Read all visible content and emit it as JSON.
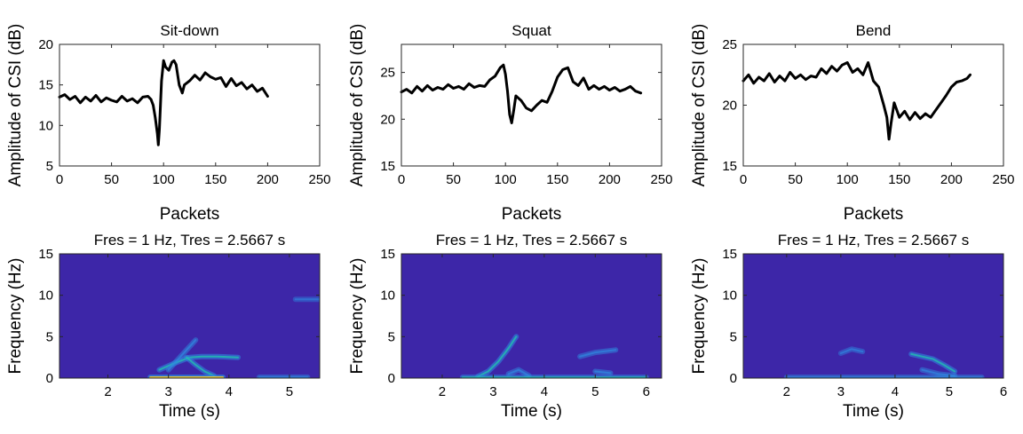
{
  "colors": {
    "line": "#000000",
    "spectrogram_background": "#3d26a8",
    "spectrogram_low": "#3d26a8",
    "spectrogram_mid": "#2f8ae0",
    "spectrogram_high": "#20c4ad",
    "spectrogram_peak": "#f9d12b"
  },
  "chart_data": [
    {
      "type": "line",
      "title": "Sit-down",
      "xlabel": "Packets",
      "ylabel": "Amplitude of CSI (dB)",
      "xlim": [
        0,
        250
      ],
      "ylim": [
        5,
        20
      ],
      "xticks": [
        0,
        50,
        100,
        150,
        200,
        250
      ],
      "yticks": [
        5,
        10,
        15,
        20
      ],
      "grid": false,
      "series": [
        {
          "x": [
            0,
            5,
            10,
            15,
            20,
            25,
            30,
            35,
            40,
            45,
            50,
            55,
            60,
            65,
            70,
            75,
            80,
            85,
            88,
            90,
            92,
            94,
            95,
            96,
            97,
            98,
            100,
            102,
            105,
            108,
            110,
            112,
            115,
            118,
            120,
            125,
            130,
            135,
            140,
            145,
            150,
            155,
            160,
            165,
            170,
            175,
            180,
            185,
            190,
            195,
            200
          ],
          "y": [
            13.5,
            13.8,
            13.2,
            13.6,
            12.8,
            13.5,
            13.0,
            13.7,
            12.9,
            13.4,
            13.1,
            12.9,
            13.6,
            13.0,
            13.3,
            12.8,
            13.5,
            13.6,
            13.2,
            12.5,
            11.0,
            9.0,
            7.6,
            9.5,
            12.5,
            15.5,
            18.0,
            17.2,
            16.8,
            17.8,
            18.0,
            17.5,
            15.0,
            14.0,
            15.0,
            15.5,
            16.2,
            15.6,
            16.5,
            16.0,
            15.7,
            15.9,
            14.8,
            15.8,
            14.9,
            15.3,
            14.5,
            15.0,
            14.2,
            14.6,
            13.6
          ]
        }
      ]
    },
    {
      "type": "line",
      "title": "Squat",
      "xlabel": "Packets",
      "ylabel": "Amplitude of CSI (dB)",
      "xlim": [
        0,
        250
      ],
      "ylim": [
        15,
        28
      ],
      "xticks": [
        0,
        50,
        100,
        150,
        200,
        250
      ],
      "yticks": [
        15,
        20,
        25
      ],
      "grid": false,
      "series": [
        {
          "x": [
            0,
            5,
            10,
            15,
            20,
            25,
            30,
            35,
            40,
            45,
            50,
            55,
            60,
            65,
            70,
            75,
            80,
            85,
            90,
            95,
            98,
            100,
            102,
            104,
            106,
            108,
            110,
            115,
            120,
            125,
            130,
            135,
            140,
            145,
            150,
            155,
            160,
            165,
            170,
            175,
            180,
            185,
            190,
            195,
            200,
            205,
            210,
            215,
            220,
            225,
            230
          ],
          "y": [
            22.9,
            23.2,
            22.8,
            23.5,
            23.0,
            23.6,
            23.1,
            23.4,
            23.2,
            23.7,
            23.3,
            23.5,
            23.2,
            23.8,
            23.4,
            23.6,
            23.5,
            24.2,
            24.6,
            25.5,
            25.8,
            24.8,
            23.0,
            20.5,
            19.6,
            21.0,
            22.5,
            22.0,
            21.2,
            20.9,
            21.5,
            22.0,
            21.8,
            23.0,
            24.5,
            25.3,
            25.5,
            24.0,
            23.6,
            24.4,
            23.2,
            23.6,
            23.2,
            23.5,
            23.1,
            23.4,
            23.0,
            23.2,
            23.5,
            23.0,
            22.8
          ]
        }
      ]
    },
    {
      "type": "line",
      "title": "Bend",
      "xlabel": "Packets",
      "ylabel": "Amplitude of CSI (dB)",
      "xlim": [
        0,
        250
      ],
      "ylim": [
        15,
        25
      ],
      "xticks": [
        0,
        50,
        100,
        150,
        200,
        250
      ],
      "yticks": [
        15,
        20,
        25
      ],
      "grid": false,
      "series": [
        {
          "x": [
            0,
            5,
            10,
            15,
            20,
            25,
            30,
            35,
            40,
            45,
            50,
            55,
            60,
            65,
            70,
            75,
            80,
            85,
            90,
            95,
            100,
            105,
            110,
            115,
            120,
            125,
            130,
            135,
            138,
            140,
            142,
            145,
            150,
            155,
            160,
            165,
            170,
            175,
            180,
            185,
            190,
            195,
            200,
            205,
            210,
            215,
            218
          ],
          "y": [
            22.0,
            22.5,
            21.8,
            22.3,
            22.0,
            22.6,
            21.9,
            22.4,
            22.0,
            22.7,
            22.2,
            22.5,
            22.1,
            22.4,
            22.3,
            23.0,
            22.6,
            23.2,
            22.8,
            23.3,
            23.5,
            22.7,
            23.0,
            22.5,
            23.5,
            22.0,
            21.5,
            20.0,
            19.0,
            17.2,
            18.5,
            20.2,
            19.0,
            19.5,
            18.8,
            19.4,
            18.9,
            19.3,
            19.0,
            19.6,
            20.2,
            20.8,
            21.5,
            21.9,
            22.0,
            22.2,
            22.5
          ]
        }
      ]
    },
    {
      "type": "heatmap",
      "title": "Fres = 1 Hz, Tres = 2.5667 s",
      "xlabel": "Time (s)",
      "ylabel": "Frequency (Hz)",
      "xlim": [
        1.2,
        5.5
      ],
      "ylim": [
        0,
        15
      ],
      "xticks": [
        2,
        3,
        4,
        5
      ],
      "yticks": [
        0,
        5,
        10,
        15
      ],
      "colormap": "parula",
      "grid": false,
      "features": [
        {
          "t": [
            2.85,
            3.1,
            3.35,
            3.55,
            3.8,
            4.15
          ],
          "f": [
            1.0,
            1.8,
            2.5,
            2.6,
            2.6,
            2.5
          ],
          "level": 0.55
        },
        {
          "t": [
            3.0,
            3.15,
            3.3,
            3.45
          ],
          "f": [
            1.0,
            2.2,
            3.4,
            4.6
          ],
          "level": 0.4
        },
        {
          "t": [
            3.3,
            3.45,
            3.6,
            3.75
          ],
          "f": [
            2.5,
            1.6,
            0.8,
            0.3
          ],
          "level": 0.5
        },
        {
          "t": [
            2.7,
            2.9,
            3.1,
            3.3,
            3.5,
            3.7,
            3.9
          ],
          "f": [
            0.1,
            0.1,
            0.1,
            0.1,
            0.1,
            0.1,
            0.1
          ],
          "level": 0.9
        },
        {
          "t": [
            4.5,
            4.9,
            5.3
          ],
          "f": [
            0.1,
            0.1,
            0.1
          ],
          "level": 0.45
        },
        {
          "t": [
            5.1,
            5.5
          ],
          "f": [
            9.5,
            9.5
          ],
          "level": 0.15
        }
      ]
    },
    {
      "type": "heatmap",
      "title": "Fres = 1 Hz, Tres = 2.5667 s",
      "xlabel": "Time (s)",
      "ylabel": "Frequency (Hz)",
      "xlim": [
        1.2,
        6.3
      ],
      "ylim": [
        0,
        15
      ],
      "xticks": [
        2,
        3,
        4,
        5,
        6
      ],
      "yticks": [
        0,
        5,
        10,
        15
      ],
      "colormap": "parula",
      "grid": false,
      "features": [
        {
          "t": [
            2.7,
            2.9,
            3.1,
            3.3,
            3.45
          ],
          "f": [
            0.2,
            0.8,
            2.0,
            3.6,
            5.0
          ],
          "level": 0.55
        },
        {
          "t": [
            3.3,
            3.5,
            3.7
          ],
          "f": [
            0.5,
            1.0,
            0.3
          ],
          "level": 0.35
        },
        {
          "t": [
            4.7,
            5.0,
            5.4
          ],
          "f": [
            2.6,
            3.1,
            3.4
          ],
          "level": 0.35
        },
        {
          "t": [
            2.4,
            3.0,
            3.6,
            4.2,
            4.8,
            5.4,
            6.0
          ],
          "f": [
            0.1,
            0.1,
            0.1,
            0.1,
            0.1,
            0.1,
            0.1
          ],
          "level": 0.5
        },
        {
          "t": [
            5.0,
            5.3
          ],
          "f": [
            0.8,
            0.6
          ],
          "level": 0.4
        }
      ]
    },
    {
      "type": "heatmap",
      "title": "Fres = 1 Hz, Tres = 2.5667 s",
      "xlabel": "Time (s)",
      "ylabel": "Frequency (Hz)",
      "xlim": [
        1.2,
        6
      ],
      "ylim": [
        0,
        15
      ],
      "xticks": [
        2,
        3,
        4,
        5,
        6
      ],
      "yticks": [
        0,
        5,
        10,
        15
      ],
      "colormap": "parula",
      "grid": false,
      "features": [
        {
          "t": [
            4.3,
            4.5,
            4.7,
            4.9,
            5.1
          ],
          "f": [
            2.9,
            2.6,
            2.3,
            1.6,
            0.8
          ],
          "level": 0.5
        },
        {
          "t": [
            3.0,
            3.2,
            3.4
          ],
          "f": [
            3.0,
            3.5,
            3.2
          ],
          "level": 0.25
        },
        {
          "t": [
            4.5,
            4.8,
            5.1
          ],
          "f": [
            1.0,
            0.5,
            0.3
          ],
          "level": 0.35
        },
        {
          "t": [
            2.0,
            2.6,
            3.2,
            3.8,
            4.4,
            5.0,
            5.6
          ],
          "f": [
            0.1,
            0.1,
            0.1,
            0.1,
            0.1,
            0.1,
            0.1
          ],
          "level": 0.4
        }
      ]
    }
  ]
}
